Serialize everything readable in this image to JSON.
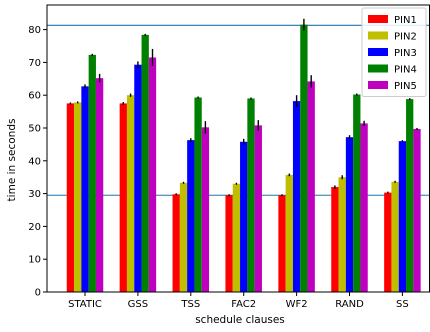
{
  "chart_data": {
    "type": "bar",
    "categories": [
      "STATIC",
      "GSS",
      "TSS",
      "FAC2",
      "WF2",
      "RAND",
      "SS"
    ],
    "series": [
      {
        "name": "PIN1",
        "color": "#ff0000",
        "values": [
          57.5,
          57.5,
          29.8,
          29.5,
          29.5,
          32.0,
          30.3
        ],
        "errors": [
          0.3,
          0.4,
          0.3,
          0.3,
          0.3,
          0.5,
          0.3
        ]
      },
      {
        "name": "PIN2",
        "color": "#bfbf00",
        "values": [
          57.8,
          60.0,
          33.3,
          33.0,
          35.7,
          35.0,
          33.6
        ],
        "errors": [
          0.3,
          0.5,
          0.3,
          0.3,
          0.4,
          0.6,
          0.3
        ]
      },
      {
        "name": "PIN3",
        "color": "#0000ff",
        "values": [
          62.7,
          69.3,
          46.3,
          45.8,
          58.2,
          47.2,
          46.0
        ],
        "errors": [
          0.6,
          1.0,
          0.6,
          0.9,
          1.8,
          0.6,
          0.3
        ]
      },
      {
        "name": "PIN4",
        "color": "#008000",
        "values": [
          72.3,
          78.4,
          59.3,
          59.0,
          81.5,
          60.2,
          58.8
        ],
        "errors": [
          0.3,
          0.3,
          0.3,
          0.3,
          1.8,
          0.3,
          0.3
        ]
      },
      {
        "name": "PIN5",
        "color": "#bf00bf",
        "values": [
          65.2,
          71.5,
          50.2,
          50.8,
          64.2,
          51.4,
          49.7
        ],
        "errors": [
          1.3,
          2.6,
          1.9,
          1.6,
          1.9,
          0.8,
          0.3
        ]
      }
    ],
    "title": "",
    "xlabel": "schedule clauses",
    "ylabel": "time in seconds",
    "ylim": [
      0,
      87.5
    ],
    "yticks": [
      0,
      10,
      20,
      30,
      40,
      50,
      60,
      70,
      80
    ],
    "reference_lines": [
      {
        "y": 81.3,
        "color": "#1f77b4"
      },
      {
        "y": 29.5,
        "color": "#1f77b4"
      }
    ],
    "grid": false,
    "legend_position": "top-right"
  }
}
